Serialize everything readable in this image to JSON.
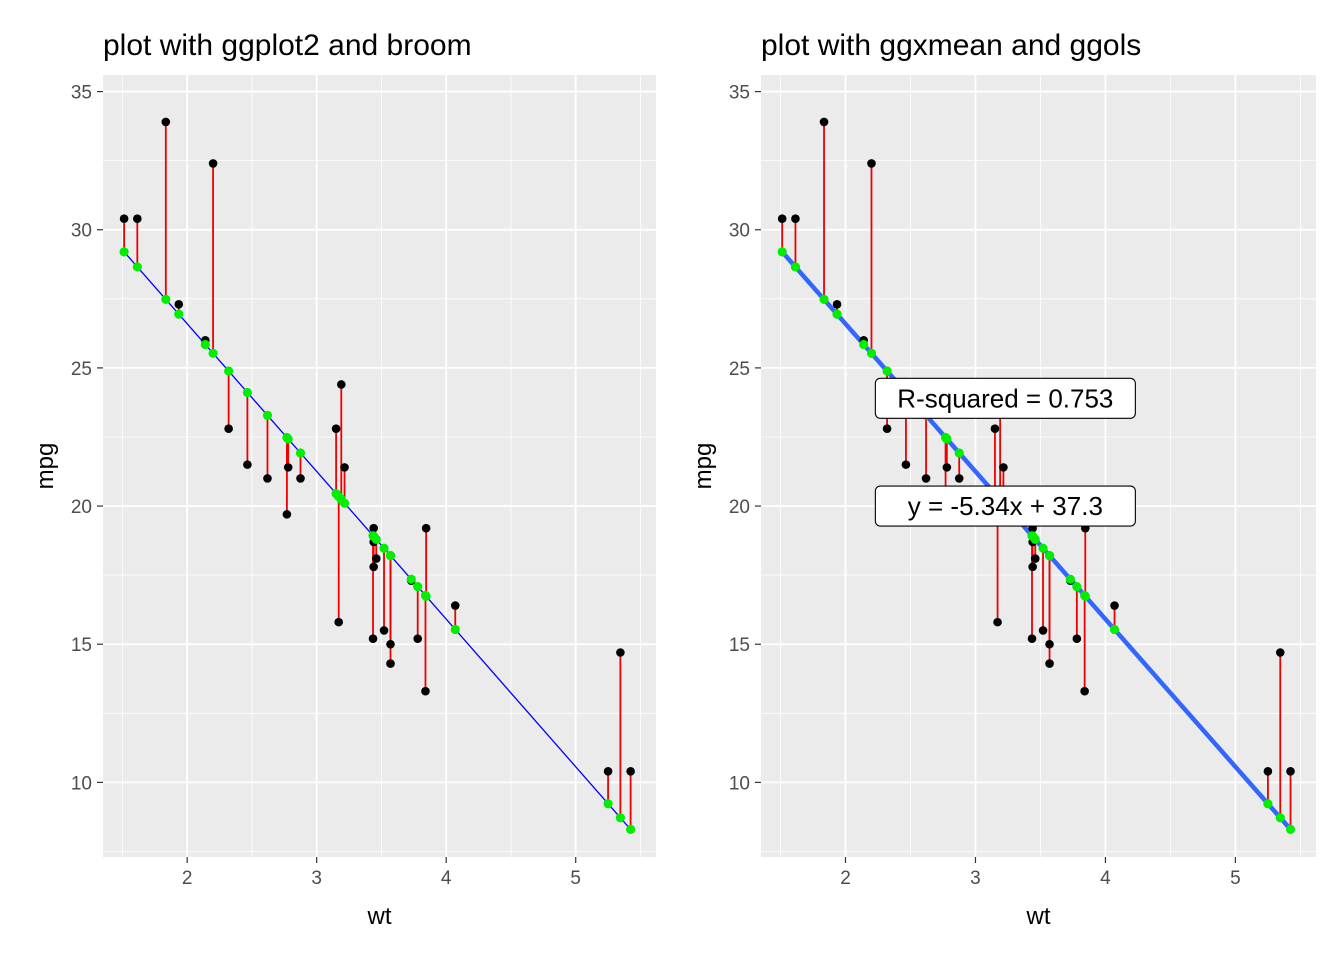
{
  "chart_data": [
    {
      "type": "scatter",
      "title": "plot with ggplot2 and broom",
      "xlabel": "wt",
      "ylabel": "mpg",
      "xlim": [
        1.35,
        5.62
      ],
      "ylim": [
        7.3,
        35.6
      ],
      "xticks": [
        2,
        3,
        4,
        5
      ],
      "yticks": [
        10,
        15,
        20,
        25,
        30,
        35
      ],
      "grid": true,
      "x": [
        2.62,
        2.875,
        2.32,
        3.215,
        3.44,
        3.46,
        3.57,
        3.19,
        3.15,
        3.44,
        3.44,
        4.07,
        3.73,
        3.78,
        5.25,
        5.424,
        5.345,
        2.2,
        1.615,
        1.835,
        2.465,
        3.52,
        3.435,
        3.84,
        3.845,
        1.935,
        2.14,
        1.513,
        3.17,
        2.77,
        3.57,
        2.78
      ],
      "y": [
        21.0,
        21.0,
        22.8,
        21.4,
        18.7,
        18.1,
        14.3,
        24.4,
        22.8,
        19.2,
        17.8,
        16.4,
        17.3,
        15.2,
        10.4,
        10.4,
        14.7,
        32.4,
        30.4,
        33.9,
        21.5,
        15.5,
        15.2,
        13.3,
        19.2,
        27.3,
        26.0,
        30.4,
        15.8,
        19.7,
        15.0,
        21.4
      ],
      "fitted_line": {
        "slope": -5.344,
        "intercept": 37.285
      },
      "styles": {
        "points": "#000000",
        "fitted_points": "#00ee00",
        "residuals": "#ee0000",
        "line": "#0000ff",
        "panel": "#ebebeb",
        "grid": "#ffffff"
      }
    },
    {
      "type": "scatter",
      "title": "plot with ggxmean and ggols",
      "xlabel": "wt",
      "ylabel": "mpg",
      "xlim": [
        1.35,
        5.62
      ],
      "ylim": [
        7.3,
        35.6
      ],
      "xticks": [
        2,
        3,
        4,
        5
      ],
      "yticks": [
        10,
        15,
        20,
        25,
        30,
        35
      ],
      "grid": true,
      "x": [
        2.62,
        2.875,
        2.32,
        3.215,
        3.44,
        3.46,
        3.57,
        3.19,
        3.15,
        3.44,
        3.44,
        4.07,
        3.73,
        3.78,
        5.25,
        5.424,
        5.345,
        2.2,
        1.615,
        1.835,
        2.465,
        3.52,
        3.435,
        3.84,
        3.845,
        1.935,
        2.14,
        1.513,
        3.17,
        2.77,
        3.57,
        2.78
      ],
      "y": [
        21.0,
        21.0,
        22.8,
        21.4,
        18.7,
        18.1,
        14.3,
        24.4,
        22.8,
        19.2,
        17.8,
        16.4,
        17.3,
        15.2,
        10.4,
        10.4,
        14.7,
        32.4,
        30.4,
        33.9,
        21.5,
        15.5,
        15.2,
        13.3,
        19.2,
        27.3,
        26.0,
        30.4,
        15.8,
        19.7,
        15.0,
        21.4
      ],
      "fitted_line": {
        "slope": -5.344,
        "intercept": 37.285
      },
      "annotations": [
        {
          "text": "R-squared = 0.753",
          "x": 3.23,
          "y": 23.9
        },
        {
          "text": "y = -5.34x + 37.3",
          "x": 3.23,
          "y": 20.0
        }
      ],
      "styles": {
        "points": "#000000",
        "fitted_points": "#00ee00",
        "residuals": "#ee0000",
        "line": "#3366ff",
        "panel": "#ebebeb",
        "grid": "#ffffff"
      }
    }
  ]
}
